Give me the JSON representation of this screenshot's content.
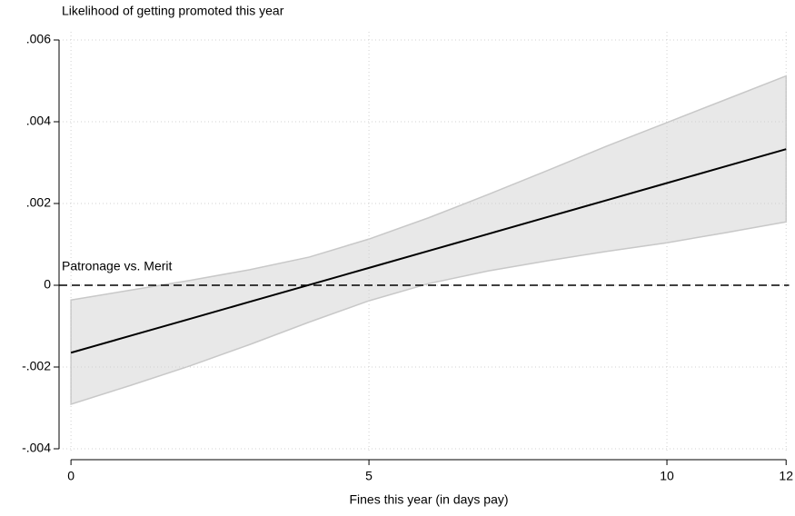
{
  "chart_data": {
    "type": "line",
    "y_title": "Likelihood of getting promoted this year",
    "x_title": "Fines this year (in days pay)",
    "x": [
      0,
      1,
      2,
      3,
      4,
      5,
      6,
      7,
      8,
      9,
      10,
      11,
      12
    ],
    "series": [
      {
        "color": "#000000",
        "values": [
          -0.00165,
          -0.001235,
          -0.00082,
          -0.000405,
          1e-05,
          0.000425,
          0.00084,
          0.001255,
          0.00167,
          0.002085,
          0.0025,
          0.002915,
          0.00333
        ]
      }
    ],
    "band": {
      "color": "#e8e8e8",
      "lower": [
        -0.00291,
        -0.00245,
        -0.00197,
        -0.00145,
        -0.0009,
        -0.00038,
        4e-05,
        0.00035,
        0.0006,
        0.00083,
        0.00104,
        0.00129,
        0.00155
      ],
      "upper": [
        -0.00036,
        -0.00012,
        0.00012,
        0.00038,
        0.00069,
        0.00113,
        0.00165,
        0.00222,
        0.00281,
        0.00341,
        0.00398,
        0.00455,
        0.00512
      ]
    },
    "hline": {
      "value": 0,
      "label": "Patronage vs. Merit"
    },
    "xlim": [
      -0.2,
      12.05
    ],
    "ylim": [
      -0.0041,
      0.0062
    ],
    "xticks": [
      0,
      5,
      10,
      12
    ],
    "yticks": [
      {
        "value": -0.004,
        "label": "-.004"
      },
      {
        "value": -0.002,
        "label": "-.002"
      },
      0,
      {
        "value": 0.002,
        "label": ".002"
      },
      {
        "value": 0.004,
        "label": ".004"
      },
      {
        "value": 0.006,
        "label": ".006"
      }
    ],
    "grid": true
  }
}
